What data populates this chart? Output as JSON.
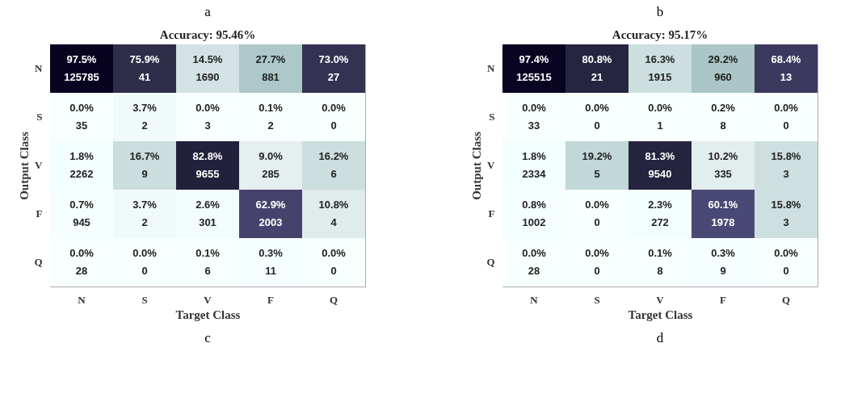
{
  "chart_data": [
    {
      "type": "heatmap",
      "title": "Accuracy: 95.46%",
      "xlabel": "Target Class",
      "ylabel": "Output Class",
      "categories": [
        "N",
        "S",
        "V",
        "F",
        "Q"
      ],
      "y_categories": [
        "N",
        "S",
        "V",
        "F",
        "Q"
      ],
      "cells": [
        [
          97.5,
          75.9,
          14.5,
          27.7,
          73.0
        ],
        [
          0.0,
          3.7,
          0.0,
          0.1,
          0.0
        ],
        [
          1.8,
          16.7,
          82.8,
          9.0,
          16.2
        ],
        [
          0.7,
          3.7,
          2.6,
          62.9,
          10.8
        ],
        [
          0.0,
          0.0,
          0.1,
          0.3,
          0.0
        ]
      ],
      "cell_labels": [
        [
          "97.5%",
          "75.9%",
          "14.5%",
          "27.7%",
          "73.0%"
        ],
        [
          "0.0%",
          "3.7%",
          "0.0%",
          "0.1%",
          "0.0%"
        ],
        [
          "1.8%",
          "16.7%",
          "82.8%",
          "9.0%",
          "16.2%"
        ],
        [
          "0.7%",
          "3.7%",
          "2.6%",
          "62.9%",
          "10.8%"
        ],
        [
          "0.0%",
          "0.0%",
          "0.1%",
          "0.3%",
          "0.0%"
        ]
      ],
      "annotations": [
        "a",
        "c",
        "125785",
        "41",
        "1690",
        "881",
        "27",
        "35",
        "2",
        "3",
        "2",
        "0",
        "2262",
        "9",
        "9655",
        "285",
        "6",
        "945",
        "2",
        "301",
        "2003",
        "4",
        "28",
        "0",
        "6",
        "11",
        "0"
      ]
    },
    {
      "type": "heatmap",
      "title": "Accuracy: 95.17%",
      "xlabel": "Target Class",
      "ylabel": "Output Class",
      "categories": [
        "N",
        "S",
        "V",
        "F",
        "Q"
      ],
      "y_categories": [
        "N",
        "S",
        "V",
        "F",
        "Q"
      ],
      "cells": [
        [
          97.4,
          80.8,
          16.3,
          29.2,
          68.4
        ],
        [
          0.0,
          0.0,
          0.0,
          0.2,
          0.0
        ],
        [
          1.8,
          19.2,
          81.3,
          10.2,
          15.8
        ],
        [
          0.8,
          0.0,
          2.3,
          60.1,
          15.8
        ],
        [
          0.0,
          0.0,
          0.1,
          0.3,
          0.0
        ]
      ],
      "cell_labels": [
        [
          "97.4%",
          "80.8%",
          "16.3%",
          "29.2%",
          "68.4%"
        ],
        [
          "0.0%",
          "0.0%",
          "0.0%",
          "0.2%",
          "0.0%"
        ],
        [
          "1.8%",
          "19.2%",
          "81.3%",
          "10.2%",
          "15.8%"
        ],
        [
          "0.8%",
          "0.0%",
          "2.3%",
          "60.1%",
          "15.8%"
        ],
        [
          "0.0%",
          "0.0%",
          "0.1%",
          "0.3%",
          "0.0%"
        ]
      ],
      "annotations": [
        "b",
        "d",
        "125515",
        "21",
        "1915",
        "960",
        "13",
        "33",
        "0",
        "1",
        "8",
        "0",
        "2334",
        "5",
        "9540",
        "335",
        "3",
        "1002",
        "0",
        "272",
        "1978",
        "3",
        "28",
        "0",
        "8",
        "9",
        "0"
      ]
    }
  ]
}
